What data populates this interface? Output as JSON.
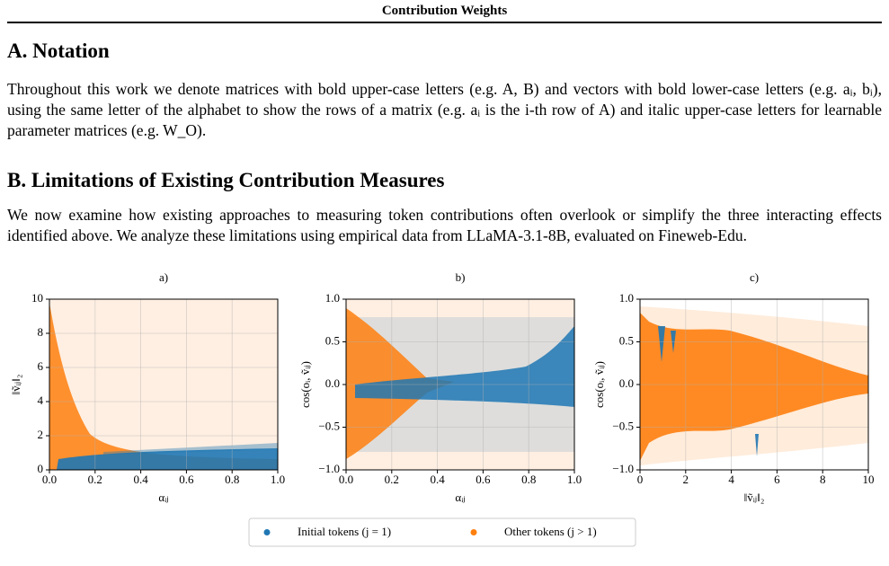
{
  "header": {
    "title": "Contribution Weights"
  },
  "sections": [
    {
      "title": "A. Notation",
      "paragraphs": [
        "Throughout this work we denote matrices with bold upper-case letters (e.g. A, B) and vectors with bold lower-case letters (e.g. aᵢ, bᵢ), using the same letter of the alphabet to show the rows of a matrix (e.g. aᵢ is the i-th row of A) and italic upper-case letters for learnable parameter matrices (e.g. W_O)."
      ]
    },
    {
      "title": "B. Limitations of Existing Contribution Measures",
      "paragraphs": [
        "We now examine how existing approaches to measuring token contributions often overlook or simplify the three interacting effects identified above. We analyze these limitations using empirical data from LLaMA-3.1-8B, evaluated on Fineweb-Edu."
      ]
    }
  ],
  "legend": [
    {
      "name": "Initial tokens (j = 1)",
      "color": "#1f77b4"
    },
    {
      "name": "Other tokens (j > 1)",
      "color": "#ff7f0e"
    }
  ],
  "chart_data": [
    {
      "type": "scatter",
      "title": "a)",
      "x_label": "αᵢⱼ",
      "y_label": "‖ṽᵢⱼ‖₂",
      "xlim": [
        0,
        1
      ],
      "ylim": [
        0,
        10
      ],
      "grid": true,
      "xticks": [
        {
          "value": 0,
          "label": "0.0"
        },
        0.2,
        0.4,
        0.6,
        0.8,
        {
          "value": 1,
          "label": "1.0"
        }
      ],
      "yticks": [
        0,
        2,
        4,
        6,
        8,
        10
      ]
    },
    {
      "type": "scatter",
      "title": "b)",
      "x_label": "αᵢⱼ",
      "y_label": "cos(oᵢ, ṽᵢⱼ)",
      "xlim": [
        0,
        1
      ],
      "ylim": [
        -1,
        1
      ],
      "grid": true,
      "xticks": [
        {
          "value": 0,
          "label": "0.0"
        },
        0.2,
        0.4,
        0.6,
        0.8,
        {
          "value": 1,
          "label": "1.0"
        }
      ],
      "yticks": [
        {
          "value": -1,
          "label": "−1.0"
        },
        {
          "value": -0.5,
          "label": "−0.5"
        },
        {
          "value": 0,
          "label": "0.0"
        },
        0.5,
        {
          "value": 1,
          "label": "1.0"
        }
      ]
    },
    {
      "type": "scatter",
      "title": "c)",
      "x_label": "‖ṽᵢⱼ‖₂",
      "y_label": "cos(oᵢ, ṽᵢⱼ)",
      "xlim": [
        0,
        10
      ],
      "ylim": [
        -1,
        1
      ],
      "grid": true,
      "xticks": [
        0,
        2,
        4,
        6,
        8,
        10
      ],
      "yticks": [
        {
          "value": -1,
          "label": "−1.0"
        },
        {
          "value": -0.5,
          "label": "−0.5"
        },
        {
          "value": 0,
          "label": "0.0"
        },
        0.5,
        {
          "value": 1,
          "label": "1.0"
        }
      ]
    }
  ]
}
